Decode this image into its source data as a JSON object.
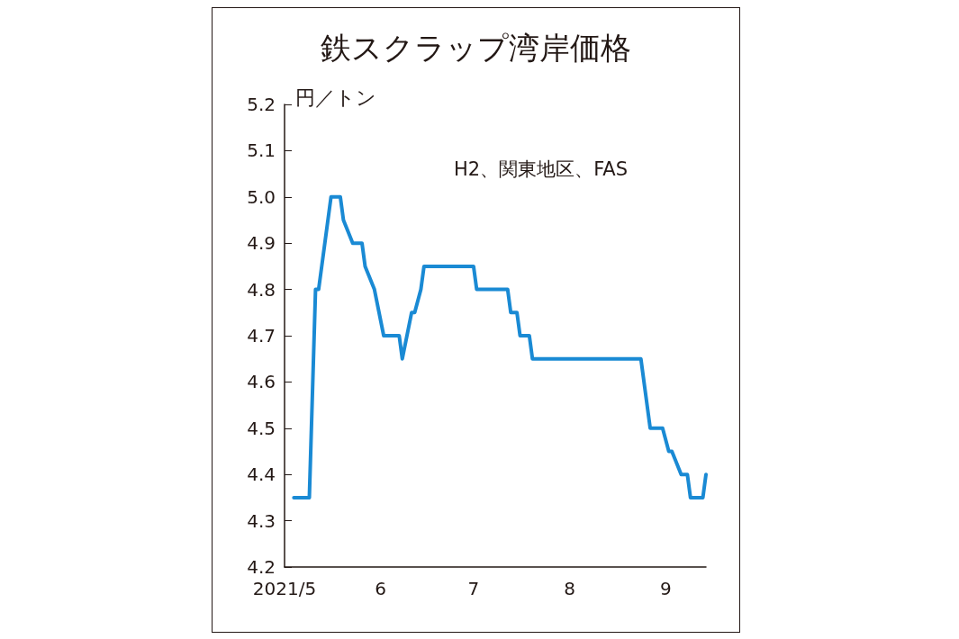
{
  "chart_data": {
    "type": "line",
    "title": "鉄スクラップ湾岸価格",
    "ylabel": "円／トン",
    "annotations": [
      "H2、関東地区、FAS"
    ],
    "x": [
      "2021-05-04",
      "2021-05-09",
      "2021-05-11",
      "2021-05-12",
      "2021-05-16",
      "2021-05-19",
      "2021-05-20",
      "2021-05-23",
      "2021-05-26",
      "2021-05-27",
      "2021-05-30",
      "2021-06-02",
      "2021-06-07",
      "2021-06-08",
      "2021-06-11",
      "2021-06-12",
      "2021-06-14",
      "2021-06-15",
      "2021-07-01",
      "2021-07-02",
      "2021-07-12",
      "2021-07-13",
      "2021-07-15",
      "2021-07-16",
      "2021-07-19",
      "2021-07-20",
      "2021-08-24",
      "2021-08-27",
      "2021-08-31",
      "2021-09-02",
      "2021-09-03",
      "2021-09-06",
      "2021-09-08",
      "2021-09-09",
      "2021-09-13",
      "2021-09-14"
    ],
    "series": [
      {
        "color": "#1a8ad4",
        "values": [
          4.35,
          4.35,
          4.8,
          4.8,
          5.0,
          5.0,
          4.95,
          4.9,
          4.9,
          4.85,
          4.8,
          4.7,
          4.7,
          4.65,
          4.75,
          4.75,
          4.8,
          4.85,
          4.85,
          4.8,
          4.8,
          4.75,
          4.75,
          4.7,
          4.7,
          4.65,
          4.65,
          4.5,
          4.5,
          4.45,
          4.45,
          4.4,
          4.4,
          4.35,
          4.35,
          4.4
        ]
      }
    ],
    "xticks": [
      {
        "value": "2021-05-01",
        "label": "2021/5"
      },
      {
        "value": "2021-06-01",
        "label": "6"
      },
      {
        "value": "2021-07-01",
        "label": "7"
      },
      {
        "value": "2021-08-01",
        "label": "8"
      },
      {
        "value": "2021-09-01",
        "label": "9"
      }
    ],
    "xlim": [
      "2021-05-01",
      "2021-09-14"
    ],
    "ylim": [
      4.2,
      5.2
    ],
    "yticks": [
      4.2,
      4.3,
      4.4,
      4.5,
      4.6,
      4.7,
      4.8,
      4.9,
      {
        "value": 5.0,
        "label": "5.0"
      },
      5.1,
      5.2
    ],
    "grid": false,
    "marker": "none",
    "line_style": "solid"
  }
}
